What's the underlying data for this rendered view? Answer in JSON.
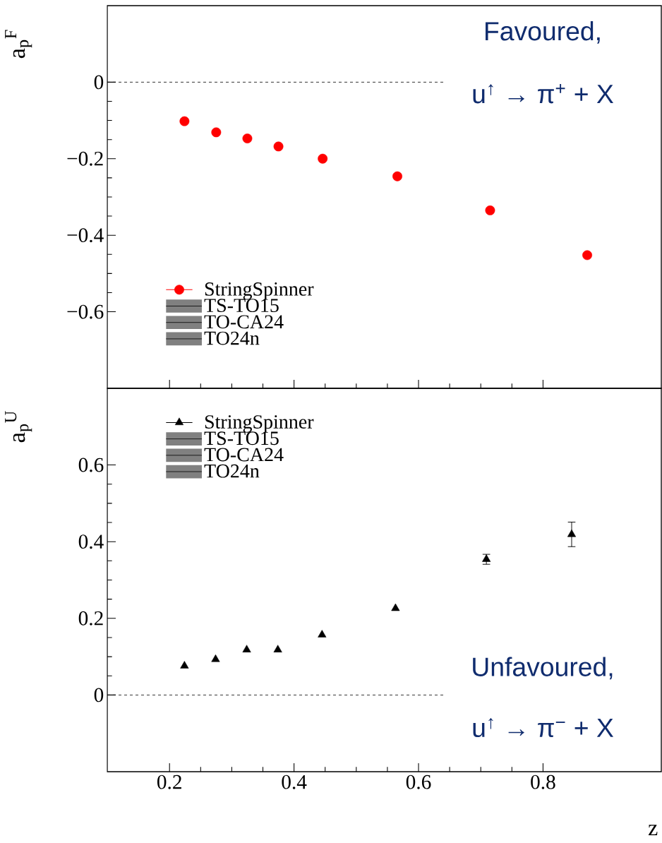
{
  "chart_data": [
    {
      "type": "scatter",
      "ylabel": "a$_{p}$$^{F}$",
      "annotations": [
        "Favoured,",
        "u$^{↑}$ → π$^{+}$ + X"
      ],
      "x": [
        0.224,
        0.275,
        0.325,
        0.375,
        0.446,
        0.566,
        0.715,
        0.871
      ],
      "series": [
        {
          "name": "StringSpinner",
          "color": "#ff0000",
          "marker": "circle",
          "values": [
            -0.102,
            -0.131,
            -0.147,
            -0.168,
            -0.2,
            -0.246,
            -0.335,
            -0.452
          ]
        },
        {
          "name": "TS-TO15",
          "color": "#808080",
          "type": "area",
          "values": [
            null,
            null,
            null,
            null,
            null,
            null,
            null,
            null
          ]
        },
        {
          "name": "TO-CA24",
          "color": "#808080",
          "type": "area",
          "values": [
            null,
            null,
            null,
            null,
            null,
            null,
            null,
            null
          ]
        },
        {
          "name": "TO24n",
          "color": "#808080",
          "type": "area",
          "values": [
            null,
            null,
            null,
            null,
            null,
            null,
            null,
            null
          ]
        }
      ],
      "xlim": [
        0.1,
        0.99
      ],
      "xticks": [
        0.2,
        0.4,
        0.6,
        0.8
      ],
      "ylim": [
        -0.8,
        0.2
      ],
      "yticks": [
        {
          "value": -0.6,
          "label": "−0.6"
        },
        {
          "value": -0.4,
          "label": "−0.4"
        },
        {
          "value": -0.2,
          "label": "−0.2"
        },
        0
      ],
      "ref_lines": [
        {
          "axis": "y",
          "value": 0,
          "line_style": "dashed"
        }
      ],
      "tick_labels": "y",
      "legend": "bottom left"
    },
    {
      "type": "scatter",
      "xlabel": "z",
      "ylabel": "a$_{p}$$^{U}$",
      "annotations": [
        "Unfavoured,",
        "u$^{↑}$ → π$^{−}$ + X"
      ],
      "x": [
        0.224,
        0.274,
        0.324,
        0.374,
        0.445,
        0.563,
        0.709,
        0.846
      ],
      "series": [
        {
          "name": "StringSpinner",
          "color": "#000000",
          "marker": "triangle",
          "values": [
            0.076,
            0.093,
            0.118,
            0.118,
            0.157,
            0.226,
            0.354,
            0.419
          ],
          "errors": [
            null,
            null,
            null,
            null,
            null,
            null,
            0.013,
            0.032
          ]
        },
        {
          "name": "TS-TO15",
          "color": "#808080",
          "type": "area",
          "values": [
            null,
            null,
            null,
            null,
            null,
            null,
            null,
            null
          ]
        },
        {
          "name": "TO-CA24",
          "color": "#808080",
          "type": "area",
          "values": [
            null,
            null,
            null,
            null,
            null,
            null,
            null,
            null
          ]
        },
        {
          "name": "TO24n",
          "color": "#808080",
          "type": "area",
          "values": [
            null,
            null,
            null,
            null,
            null,
            null,
            null,
            null
          ]
        }
      ],
      "xlim": [
        0.1,
        0.99
      ],
      "xticks": [
        0.2,
        0.4,
        0.6,
        0.8
      ],
      "ylim": [
        -0.2,
        0.8
      ],
      "yticks": [
        0,
        0.2,
        0.4,
        0.6
      ],
      "ref_lines": [
        {
          "axis": "y",
          "value": 0,
          "line_style": "dashed"
        }
      ],
      "legend": "top left"
    }
  ]
}
